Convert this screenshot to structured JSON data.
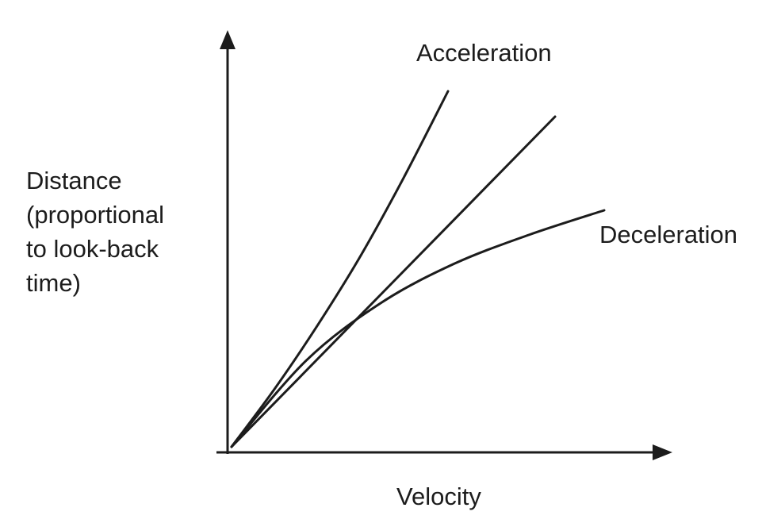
{
  "chart_data": {
    "type": "line",
    "title": "",
    "xlabel": "Velocity",
    "ylabel_lines": [
      "Distance",
      "(proportional",
      "to look-back",
      "time)"
    ],
    "axis_ticks": false,
    "grid": false,
    "legend": "none",
    "line_color": "#1c1c1c",
    "series": [
      {
        "name": "Acceleration",
        "x": [
          0,
          0.2,
          0.4,
          0.6,
          0.8,
          1.0
        ],
        "y": [
          0,
          0.2,
          0.42,
          0.66,
          0.93,
          1.22
        ]
      },
      {
        "name": "",
        "x": [
          0,
          1.0,
          2.0,
          3.0
        ],
        "y": [
          0,
          0.23,
          0.46,
          0.69
        ]
      },
      {
        "name": "Deceleration",
        "x": [
          0,
          1.0,
          2.0,
          3.0,
          4.0,
          5.0
        ],
        "y": [
          0,
          0.195,
          0.325,
          0.415,
          0.48,
          0.535
        ]
      }
    ]
  }
}
